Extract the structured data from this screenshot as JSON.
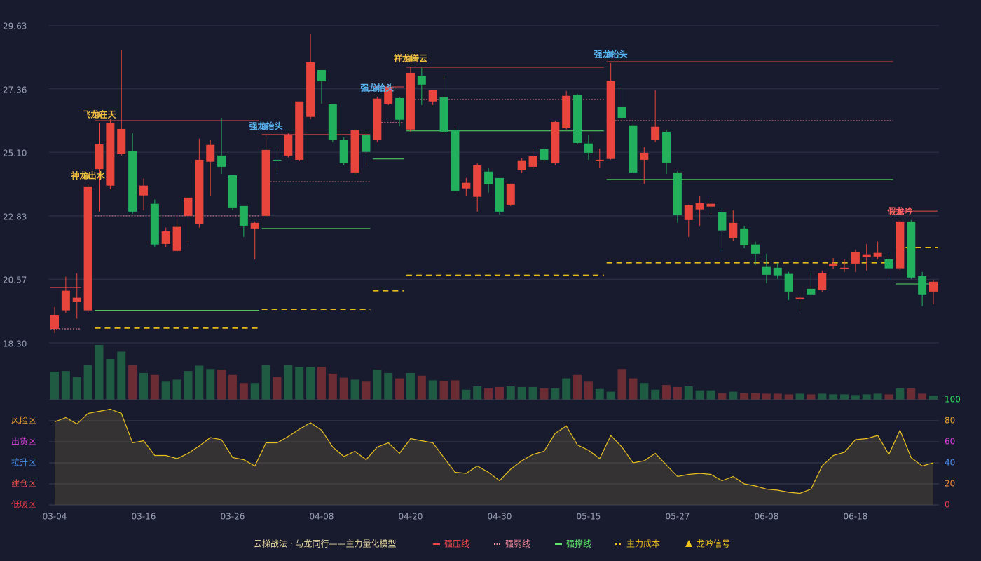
{
  "legend": {
    "title": "云梯战法 · 与龙同行——主力量化模型",
    "items": [
      {
        "name": "强压线",
        "color": "#f0484a",
        "style": "solid"
      },
      {
        "name": "强弱线",
        "color": "#f08a9a",
        "style": "dotted"
      },
      {
        "name": "强撑线",
        "color": "#5ee86a",
        "style": "solid"
      },
      {
        "name": "主力成本",
        "color": "#f0c419",
        "style": "dashed"
      },
      {
        "name": "龙吟信号",
        "color": "#f0c419",
        "style": "triangle"
      }
    ]
  },
  "chart_data": [
    {
      "type": "candlestick",
      "categories": [
        "03-04",
        null,
        null,
        null,
        null,
        null,
        null,
        null,
        "03-16",
        null,
        null,
        null,
        null,
        null,
        null,
        null,
        "03-26",
        null,
        null,
        null,
        null,
        null,
        null,
        null,
        "04-08",
        null,
        null,
        null,
        null,
        null,
        null,
        null,
        "04-20",
        null,
        null,
        null,
        null,
        null,
        null,
        null,
        "04-30",
        null,
        null,
        null,
        null,
        null,
        null,
        null,
        "05-15",
        null,
        null,
        null,
        null,
        null,
        null,
        null,
        "05-27",
        null,
        null,
        null,
        null,
        null,
        null,
        null,
        "06-08",
        null,
        null,
        null,
        null,
        null,
        null,
        null,
        "06-18",
        null,
        null,
        null,
        null,
        null,
        null,
        null
      ],
      "open": [
        18.8,
        19.46,
        19.76,
        19.46,
        24.5,
        23.91,
        25.03,
        25.13,
        23.56,
        23.26,
        21.83,
        21.58,
        22.83,
        22.53,
        24.76,
        24.98,
        24.28,
        23.18,
        22.38,
        22.83,
        24.83,
        24.98,
        24.83,
        26.36,
        28.03,
        26.81,
        25.53,
        24.38,
        25.71,
        25.53,
        26.83,
        27.03,
        25.91,
        27.83,
        26.91,
        27.06,
        25.88,
        23.81,
        23.51,
        24.41,
        24.18,
        23.23,
        24.46,
        24.58,
        25.21,
        24.71,
        25.96,
        27.13,
        25.41,
        24.78,
        24.86,
        26.73,
        26.06,
        24.83,
        25.53,
        25.83,
        24.38,
        22.68,
        23.06,
        23.16,
        22.96,
        22.03,
        22.38,
        21.81,
        21.01,
        20.98,
        20.76,
        19.88,
        20.23,
        20.18,
        21.03,
        20.96,
        21.13,
        21.36,
        21.38,
        21.28,
        20.96,
        22.63,
        20.68,
        20.13
      ],
      "high": [
        19.58,
        20.66,
        20.78,
        23.95,
        26.13,
        26.28,
        28.73,
        25.78,
        24.16,
        23.41,
        22.41,
        22.83,
        23.53,
        25.58,
        25.53,
        26.33,
        24.28,
        23.18,
        22.63,
        25.71,
        25.18,
        25.78,
        26.91,
        29.33,
        28.03,
        26.81,
        25.63,
        25.93,
        25.86,
        27.08,
        27.53,
        27.08,
        28.13,
        28.11,
        27.31,
        27.83,
        25.98,
        24.18,
        24.71,
        24.53,
        24.18,
        23.98,
        24.88,
        25.23,
        25.28,
        26.23,
        27.28,
        27.18,
        25.73,
        25.23,
        28.28,
        27.38,
        26.23,
        25.28,
        27.31,
        25.91,
        24.43,
        23.23,
        23.53,
        23.46,
        23.11,
        23.03,
        22.48,
        21.91,
        21.48,
        21.16,
        20.83,
        20.08,
        20.78,
        20.88,
        21.33,
        21.28,
        21.63,
        21.83,
        21.91,
        21.46,
        22.68,
        22.68,
        20.83,
        20.53
      ],
      "low": [
        18.65,
        19.36,
        19.16,
        19.36,
        22.98,
        23.78,
        24.98,
        22.9,
        23.03,
        21.73,
        21.73,
        21.53,
        21.91,
        22.41,
        23.53,
        24.33,
        23.03,
        22.08,
        21.28,
        22.78,
        24.41,
        24.91,
        24.78,
        26.28,
        26.83,
        25.46,
        24.63,
        24.28,
        24.66,
        25.46,
        26.78,
        26.03,
        25.83,
        26.78,
        26.78,
        25.78,
        23.68,
        23.53,
        22.98,
        23.66,
        22.88,
        23.18,
        24.36,
        24.51,
        24.73,
        24.63,
        25.91,
        25.38,
        24.83,
        24.53,
        24.83,
        26.16,
        24.33,
        23.98,
        25.46,
        24.33,
        22.58,
        22.08,
        22.48,
        22.91,
        21.58,
        21.93,
        21.68,
        21.08,
        20.43,
        20.58,
        19.83,
        19.51,
        19.96,
        20.13,
        20.93,
        20.83,
        20.83,
        20.88,
        21.28,
        20.58,
        20.91,
        20.58,
        19.61,
        19.68
      ],
      "close": [
        19.3,
        20.16,
        19.91,
        23.88,
        25.38,
        26.13,
        25.93,
        22.98,
        23.91,
        21.81,
        22.28,
        22.46,
        23.48,
        24.83,
        25.36,
        24.58,
        23.13,
        22.48,
        22.58,
        25.18,
        24.81,
        25.71,
        26.91,
        28.31,
        27.63,
        25.53,
        24.71,
        25.88,
        25.11,
        27.01,
        27.43,
        26.26,
        27.93,
        27.51,
        27.31,
        25.83,
        23.73,
        24.01,
        24.63,
        23.96,
        22.98,
        23.98,
        24.81,
        24.96,
        24.83,
        26.18,
        27.11,
        25.43,
        25.08,
        24.83,
        27.63,
        26.33,
        24.38,
        25.08,
        26.01,
        24.73,
        22.86,
        23.21,
        23.28,
        23.26,
        22.31,
        22.58,
        21.78,
        21.48,
        20.73,
        20.71,
        20.13,
        19.91,
        20.03,
        20.78,
        21.13,
        20.98,
        21.53,
        21.46,
        21.51,
        20.96,
        22.63,
        20.63,
        20.03,
        20.48
      ],
      "up_color": "#e8453c",
      "down_color": "#22b05d",
      "ylim": [
        18.3,
        29.63
      ],
      "yticks": [
        {
          "value": 18.3,
          "label": "18.30"
        },
        20.57,
        22.83,
        {
          "value": 25.1,
          "label": "25.10"
        },
        27.36,
        29.63
      ],
      "levels": [
        {
          "kind": 0,
          "from": 0,
          "to": 2,
          "value": 20.28
        },
        {
          "kind": 0,
          "from": 4,
          "to": 18,
          "value": 26.23
        },
        {
          "kind": 0,
          "from": 19,
          "to": 28,
          "value": 25.73
        },
        {
          "kind": 0,
          "from": 29,
          "to": 31,
          "value": 27.43
        },
        {
          "kind": 0,
          "from": 32,
          "to": 49,
          "value": 28.13
        },
        {
          "kind": 0,
          "from": 50,
          "to": 75,
          "value": 28.33
        },
        {
          "kind": 0,
          "from": 76,
          "to": 79,
          "value": 23.0
        },
        {
          "kind": 1,
          "from": 0,
          "to": 2,
          "value": 18.8
        },
        {
          "kind": 1,
          "from": 4,
          "to": 18,
          "value": 22.83
        },
        {
          "kind": 1,
          "from": 19,
          "to": 28,
          "value": 24.05
        },
        {
          "kind": 1,
          "from": 29,
          "to": 31,
          "value": 26.16
        },
        {
          "kind": 1,
          "from": 32,
          "to": 49,
          "value": 26.98
        },
        {
          "kind": 1,
          "from": 50,
          "to": 75,
          "value": 26.23
        },
        {
          "kind": 2,
          "from": 4,
          "to": 18,
          "value": 19.46
        },
        {
          "kind": 2,
          "from": 19,
          "to": 28,
          "value": 22.38
        },
        {
          "kind": 2,
          "from": 29,
          "to": 31,
          "value": 24.86
        },
        {
          "kind": 2,
          "from": 32,
          "to": 49,
          "value": 25.86
        },
        {
          "kind": 2,
          "from": 50,
          "to": 75,
          "value": 24.13
        },
        {
          "kind": 2,
          "from": 76,
          "to": 79,
          "value": 20.4
        },
        {
          "kind": 3,
          "from": 4,
          "to": 18,
          "value": 18.83
        },
        {
          "kind": 3,
          "from": 19,
          "to": 28,
          "value": 19.5
        },
        {
          "kind": 3,
          "from": 29,
          "to": 31,
          "value": 20.16
        },
        {
          "kind": 3,
          "from": 32,
          "to": 49,
          "value": 20.71
        },
        {
          "kind": 3,
          "from": 50,
          "to": 75,
          "value": 21.16
        },
        {
          "kind": 3,
          "from": 76,
          "to": 79,
          "value": 21.7
        }
      ],
      "signals": [
        {
          "name": "神龙出水",
          "index": 3,
          "color": "#f0c040"
        },
        {
          "name": "飞龙在天",
          "index": 4,
          "color": "#f0c040"
        },
        {
          "name": "强龙抬头",
          "index": 19,
          "color": "#5ab4f0"
        },
        {
          "name": "强龙抬头",
          "index": 29,
          "color": "#5ab4f0"
        },
        {
          "name": "祥龙腾云",
          "index": 32,
          "color": "#f0c040"
        },
        {
          "name": "强龙抬头",
          "index": 50,
          "color": "#5ab4f0"
        },
        {
          "name": "假龙吟",
          "index": 76,
          "color": "#ff6464"
        }
      ]
    },
    {
      "type": "bar",
      "values": [
        42,
        43,
        34,
        52,
        82,
        61,
        72,
        52,
        40,
        37,
        27,
        30,
        43,
        51,
        46,
        45,
        37,
        25,
        25,
        52,
        34,
        52,
        49,
        49,
        49,
        39,
        33,
        30,
        27,
        45,
        40,
        32,
        40,
        36,
        29,
        28,
        29,
        15,
        20,
        17,
        19,
        20,
        19,
        19,
        17,
        17,
        32,
        37,
        27,
        16,
        12,
        46,
        32,
        25,
        15,
        22,
        19,
        20,
        14,
        14,
        10,
        12,
        10,
        10,
        9,
        9,
        8,
        9,
        8,
        9,
        8,
        8,
        7,
        8,
        9,
        8,
        17,
        17,
        9,
        6
      ],
      "ylim": [
        0,
        82
      ],
      "up_color": "#1f5a42",
      "down_color": "#6b2c33"
    },
    {
      "type": "line",
      "values": [
        79,
        83,
        77,
        87,
        89,
        91,
        87,
        59,
        61,
        47,
        47,
        44,
        49,
        56,
        64,
        62,
        45,
        43,
        37,
        59,
        59,
        65,
        72,
        78,
        71,
        55,
        46,
        51,
        43,
        55,
        59,
        49,
        63,
        61,
        59,
        45,
        31,
        30,
        37,
        31,
        23,
        34,
        42,
        48,
        51,
        68,
        75,
        57,
        52,
        44,
        66,
        55,
        40,
        42,
        49,
        38,
        27,
        29,
        30,
        29,
        23,
        27,
        20,
        18,
        15,
        14,
        12,
        11,
        15,
        37,
        47,
        50,
        62,
        63,
        66,
        48,
        71,
        45,
        37,
        40
      ],
      "color": "#e8c020",
      "ylim": [
        0,
        100
      ],
      "yticks": [
        0,
        20,
        40,
        60,
        80,
        100
      ],
      "ytick_colors": [
        "#f03a4a",
        "#f08a30",
        "#4a90f0",
        "#e040e0",
        "#f0a030",
        "#30e060"
      ],
      "zones": [
        {
          "label": "风险区",
          "value": 80,
          "color": "#f0a030"
        },
        {
          "label": "出货区",
          "value": 60,
          "color": "#e040e0"
        },
        {
          "label": "拉升区",
          "value": 40,
          "color": "#4a90f0"
        },
        {
          "label": "建仓区",
          "value": 20,
          "color": "#f05050"
        },
        {
          "label": "低吸区",
          "value": 0,
          "color": "#f03a4a"
        }
      ]
    }
  ]
}
